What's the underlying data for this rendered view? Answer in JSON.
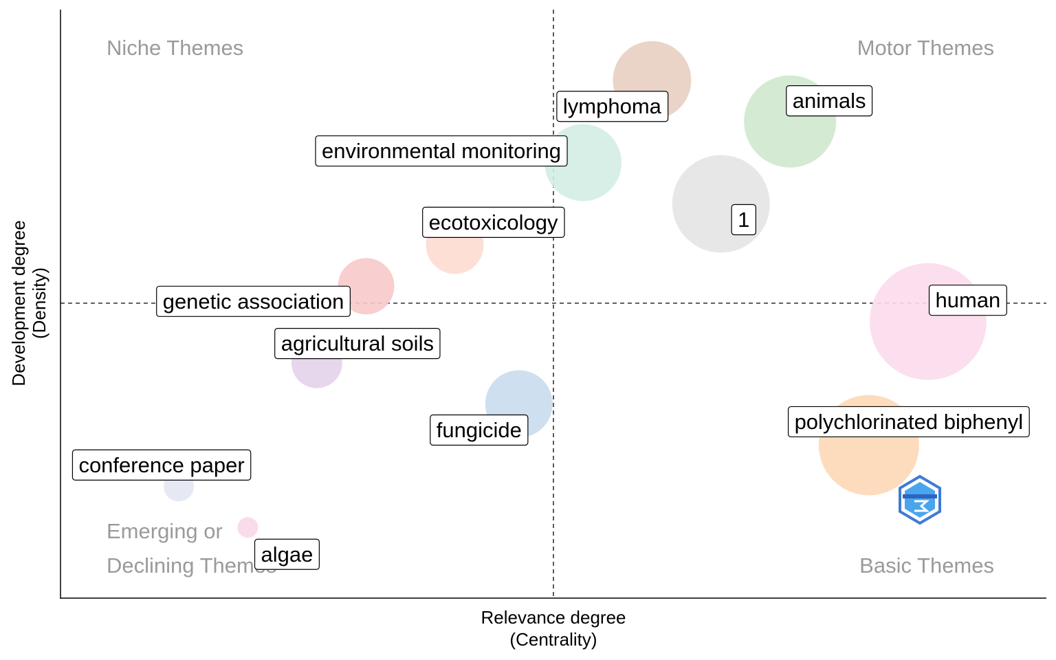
{
  "chart_data": {
    "type": "scatter",
    "xlabel": [
      "Relevance degree",
      "(Centrality)"
    ],
    "ylabel": [
      "Development degree",
      "(Density)"
    ],
    "quadrant_labels": {
      "top_left": [
        "Niche Themes"
      ],
      "top_right": [
        "Motor Themes"
      ],
      "bottom_left": [
        "Emerging or",
        "Declining Themes"
      ],
      "bottom_right": [
        "Basic Themes"
      ]
    },
    "points": [
      {
        "label": "lymphoma",
        "x": 0.6,
        "y": 0.88,
        "size": 57,
        "color": "#e8cfc2"
      },
      {
        "label": "animals",
        "x": 0.74,
        "y": 0.81,
        "size": 67,
        "color": "#cfe8cd"
      },
      {
        "label": "environmental monitoring",
        "x": 0.53,
        "y": 0.74,
        "size": 56,
        "color": "#d3ede4"
      },
      {
        "label": "1",
        "x": 0.67,
        "y": 0.67,
        "size": 71,
        "color": "#e4e4e4"
      },
      {
        "label": "ecotoxicology",
        "x": 0.4,
        "y": 0.6,
        "size": 42,
        "color": "#fddcd0"
      },
      {
        "label": "genetic association",
        "x": 0.31,
        "y": 0.53,
        "size": 41,
        "color": "#f7c9c9"
      },
      {
        "label": "human",
        "x": 0.88,
        "y": 0.47,
        "size": 85,
        "color": "#fcdcec"
      },
      {
        "label": "agricultural soils",
        "x": 0.26,
        "y": 0.4,
        "size": 37,
        "color": "#e4d3ea"
      },
      {
        "label": "fungicide",
        "x": 0.465,
        "y": 0.33,
        "size": 49,
        "color": "#c9dced"
      },
      {
        "label": "polychlorinated biphenyl",
        "x": 0.82,
        "y": 0.26,
        "size": 73,
        "color": "#fdd8b6"
      },
      {
        "label": "conference paper",
        "x": 0.12,
        "y": 0.19,
        "size": 22,
        "color": "#e3e7f2"
      },
      {
        "label": "algae",
        "x": 0.19,
        "y": 0.12,
        "size": 15,
        "color": "#f8d8e8"
      }
    ]
  }
}
